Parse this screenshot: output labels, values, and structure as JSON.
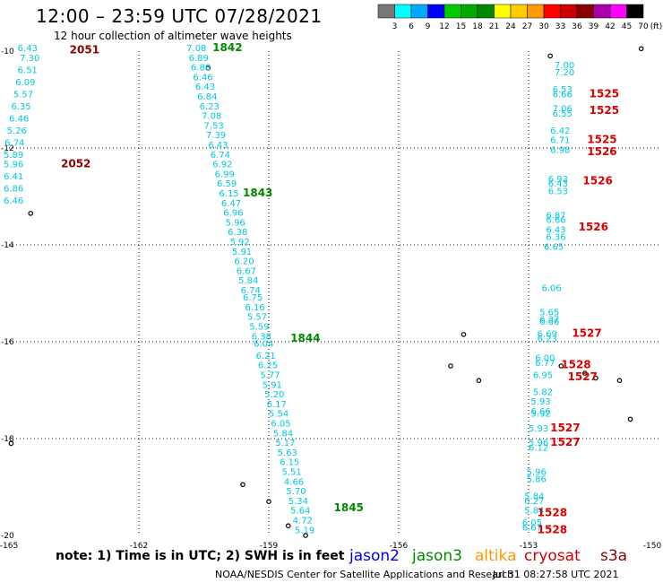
{
  "header": {
    "title": "12:00 – 23:59 UTC 07/28/2021",
    "subtitle": "12 hour collection of altimeter wave heights"
  },
  "colorbar": {
    "labels": [
      "3",
      "6",
      "9",
      "12",
      "15",
      "18",
      "21",
      "24",
      "27",
      "30",
      "33",
      "36",
      "39",
      "42",
      "45",
      "70",
      "(ft)"
    ],
    "colors": [
      "#777777",
      "#00ffff",
      "#00aaff",
      "#0000ff",
      "#00cc00",
      "#00aa00",
      "#008800",
      "#ffff00",
      "#ffcc00",
      "#ff9900",
      "#ff0000",
      "#cc0000",
      "#880000",
      "#aa00aa",
      "#ff00ff",
      "#000000"
    ]
  },
  "axes": {
    "x_ticks": [
      "-165",
      "-162",
      "-159",
      "-156",
      "-153",
      "-150"
    ],
    "y_ticks": [
      "-10",
      "-12",
      "-14",
      "-16",
      "-18",
      "-20"
    ]
  },
  "tracks": [
    {
      "label": "2051",
      "color": "#8b0000",
      "lat": -10.05,
      "lon": -163.6
    },
    {
      "label": "2052",
      "color": "#8b0000",
      "lat": -12.4,
      "lon": -163.8
    },
    {
      "label": "1842",
      "color": "#008800",
      "lat": -10.0,
      "lon": -160.3
    },
    {
      "label": "1843",
      "color": "#008800",
      "lat": -13.0,
      "lon": -159.6
    },
    {
      "label": "1844",
      "color": "#008800",
      "lat": -16.0,
      "lon": -158.5
    },
    {
      "label": "1845",
      "color": "#008800",
      "lat": -19.5,
      "lon": -157.5
    },
    {
      "label": "1525",
      "color": "#dd0000",
      "lat": -10.95,
      "lon": -151.6
    },
    {
      "label": "1525",
      "color": "#dd0000",
      "lat": -11.3,
      "lon": -151.6
    },
    {
      "label": "1525",
      "color": "#dd0000",
      "lat": -11.9,
      "lon": -151.65
    },
    {
      "label": "1526",
      "color": "#dd0000",
      "lat": -12.15,
      "lon": -151.65
    },
    {
      "label": "1526",
      "color": "#dd0000",
      "lat": -12.75,
      "lon": -151.75
    },
    {
      "label": "1526",
      "color": "#dd0000",
      "lat": -13.7,
      "lon": -151.85
    },
    {
      "label": "1527",
      "color": "#dd0000",
      "lat": -15.9,
      "lon": -152.0
    },
    {
      "label": "1528",
      "color": "#dd0000",
      "lat": -16.55,
      "lon": -152.25
    },
    {
      "label": "1527",
      "color": "#dd0000",
      "lat": -16.8,
      "lon": -152.1
    },
    {
      "label": "1527",
      "color": "#dd0000",
      "lat": -17.85,
      "lon": -152.5
    },
    {
      "label": "1527",
      "color": "#dd0000",
      "lat": -18.15,
      "lon": -152.5
    },
    {
      "label": "1528",
      "color": "#dd0000",
      "lat": -19.6,
      "lon": -152.8
    },
    {
      "label": "1528",
      "color": "#dd0000",
      "lat": -19.95,
      "lon": -152.8
    }
  ],
  "wave_values": [
    {
      "v": "6.43",
      "lat": -10.0,
      "lon": -164.8
    },
    {
      "v": "7.30",
      "lat": -10.2,
      "lon": -164.75
    },
    {
      "v": "6.51",
      "lat": -10.45,
      "lon": -164.8
    },
    {
      "v": "6.09",
      "lat": -10.7,
      "lon": -164.85
    },
    {
      "v": "5.57",
      "lat": -10.95,
      "lon": -164.9
    },
    {
      "v": "6.35",
      "lat": -11.2,
      "lon": -164.95
    },
    {
      "v": "6.46",
      "lat": -11.45,
      "lon": -165.0
    },
    {
      "v": "5.26",
      "lat": -11.7,
      "lon": -165.05
    },
    {
      "v": "6.74",
      "lat": -11.95,
      "lon": -165.1
    },
    {
      "v": "5.89",
      "lat": -12.2,
      "lon": -165.15
    },
    {
      "v": "5.96",
      "lat": -12.4,
      "lon": -165.2
    },
    {
      "v": "6.41",
      "lat": -12.65,
      "lon": -165.25
    },
    {
      "v": "6.86",
      "lat": -12.9,
      "lon": -165.3
    },
    {
      "v": "6.46",
      "lat": -13.15,
      "lon": -165.35
    },
    {
      "v": "7.08",
      "lat": -10.0,
      "lon": -160.9
    },
    {
      "v": "6.89",
      "lat": -10.2,
      "lon": -160.85
    },
    {
      "v": "6.88",
      "lat": -10.4,
      "lon": -160.8
    },
    {
      "v": "6.46",
      "lat": -10.6,
      "lon": -160.75
    },
    {
      "v": "6.43",
      "lat": -10.8,
      "lon": -160.7
    },
    {
      "v": "6.84",
      "lat": -11.0,
      "lon": -160.65
    },
    {
      "v": "6.23",
      "lat": -11.2,
      "lon": -160.6
    },
    {
      "v": "7.08",
      "lat": -11.4,
      "lon": -160.55
    },
    {
      "v": "7.53",
      "lat": -11.6,
      "lon": -160.5
    },
    {
      "v": "7.39",
      "lat": -11.8,
      "lon": -160.45
    },
    {
      "v": "6.43",
      "lat": -12.0,
      "lon": -160.4
    },
    {
      "v": "6.74",
      "lat": -12.2,
      "lon": -160.35
    },
    {
      "v": "6.92",
      "lat": -12.4,
      "lon": -160.3
    },
    {
      "v": "6.99",
      "lat": -12.6,
      "lon": -160.25
    },
    {
      "v": "6.59",
      "lat": -12.8,
      "lon": -160.2
    },
    {
      "v": "6.15",
      "lat": -13.0,
      "lon": -160.15
    },
    {
      "v": "6.47",
      "lat": -13.2,
      "lon": -160.1
    },
    {
      "v": "6.96",
      "lat": -13.4,
      "lon": -160.05
    },
    {
      "v": "5.96",
      "lat": -13.6,
      "lon": -160.0
    },
    {
      "v": "6.38",
      "lat": -13.8,
      "lon": -159.95
    },
    {
      "v": "5.92",
      "lat": -14.0,
      "lon": -159.9
    },
    {
      "v": "5.91",
      "lat": -14.2,
      "lon": -159.85
    },
    {
      "v": "6.20",
      "lat": -14.4,
      "lon": -159.8
    },
    {
      "v": "6.67",
      "lat": -14.6,
      "lon": -159.75
    },
    {
      "v": "5.84",
      "lat": -14.8,
      "lon": -159.7
    },
    {
      "v": "6.74",
      "lat": -15.0,
      "lon": -159.65
    },
    {
      "v": "6.75",
      "lat": -15.15,
      "lon": -159.6
    },
    {
      "v": "6.16",
      "lat": -15.35,
      "lon": -159.55
    },
    {
      "v": "5.57",
      "lat": -15.55,
      "lon": -159.5
    },
    {
      "v": "5.59",
      "lat": -15.75,
      "lon": -159.45
    },
    {
      "v": "6.38",
      "lat": -15.95,
      "lon": -159.4
    },
    {
      "v": "6.04",
      "lat": -16.1,
      "lon": -159.35
    },
    {
      "v": "6.21",
      "lat": -16.35,
      "lon": -159.3
    },
    {
      "v": "6.25",
      "lat": -16.55,
      "lon": -159.25
    },
    {
      "v": "5.77",
      "lat": -16.75,
      "lon": -159.2
    },
    {
      "v": "5.91",
      "lat": -16.95,
      "lon": -159.15
    },
    {
      "v": "5.20",
      "lat": -17.15,
      "lon": -159.1
    },
    {
      "v": "6.17",
      "lat": -17.35,
      "lon": -159.05
    },
    {
      "v": "5.54",
      "lat": -17.55,
      "lon": -159.0
    },
    {
      "v": "6.05",
      "lat": -17.75,
      "lon": -158.95
    },
    {
      "v": "5.84",
      "lat": -17.95,
      "lon": -158.9
    },
    {
      "v": "5.17",
      "lat": -18.15,
      "lon": -158.85
    },
    {
      "v": "5.63",
      "lat": -18.35,
      "lon": -158.8
    },
    {
      "v": "6.15",
      "lat": -18.55,
      "lon": -158.75
    },
    {
      "v": "5.51",
      "lat": -18.75,
      "lon": -158.7
    },
    {
      "v": "4.66",
      "lat": -18.95,
      "lon": -158.65
    },
    {
      "v": "5.70",
      "lat": -19.15,
      "lon": -158.6
    },
    {
      "v": "5.34",
      "lat": -19.35,
      "lon": -158.55
    },
    {
      "v": "5.64",
      "lat": -19.55,
      "lon": -158.5
    },
    {
      "v": "4.72",
      "lat": -19.75,
      "lon": -158.45
    },
    {
      "v": "5.19",
      "lat": -19.95,
      "lon": -158.4
    },
    {
      "v": "7.00",
      "lat": -10.35,
      "lon": -152.4
    },
    {
      "v": "7.20",
      "lat": -10.5,
      "lon": -152.4
    },
    {
      "v": "6.53",
      "lat": -10.85,
      "lon": -152.45
    },
    {
      "v": "6.66",
      "lat": -10.95,
      "lon": -152.45
    },
    {
      "v": "7.06",
      "lat": -11.25,
      "lon": -152.45
    },
    {
      "v": "6.55",
      "lat": -11.35,
      "lon": -152.45
    },
    {
      "v": "6.42",
      "lat": -11.7,
      "lon": -152.5
    },
    {
      "v": "6.71",
      "lat": -11.9,
      "lon": -152.5
    },
    {
      "v": "6.98",
      "lat": -12.1,
      "lon": -152.5
    },
    {
      "v": "6.93",
      "lat": -12.7,
      "lon": -152.55
    },
    {
      "v": "6.43",
      "lat": -12.8,
      "lon": -152.55
    },
    {
      "v": "6.53",
      "lat": -12.95,
      "lon": -152.55
    },
    {
      "v": "6.87",
      "lat": -13.45,
      "lon": -152.6
    },
    {
      "v": "6.66",
      "lat": -13.55,
      "lon": -152.6
    },
    {
      "v": "6.43",
      "lat": -13.75,
      "lon": -152.6
    },
    {
      "v": "6.36",
      "lat": -13.9,
      "lon": -152.6
    },
    {
      "v": "6.65",
      "lat": -14.1,
      "lon": -152.65
    },
    {
      "v": "6.06",
      "lat": -14.95,
      "lon": -152.7
    },
    {
      "v": "5.65",
      "lat": -15.45,
      "lon": -152.75
    },
    {
      "v": "6.37",
      "lat": -15.6,
      "lon": -152.75
    },
    {
      "v": "6.66",
      "lat": -15.65,
      "lon": -152.75
    },
    {
      "v": "6.69",
      "lat": -15.9,
      "lon": -152.8
    },
    {
      "v": "6.23",
      "lat": -16.0,
      "lon": -152.8
    },
    {
      "v": "6.00",
      "lat": -16.4,
      "lon": -152.85
    },
    {
      "v": "6.77",
      "lat": -16.5,
      "lon": -152.85
    },
    {
      "v": "6.95",
      "lat": -16.75,
      "lon": -152.9
    },
    {
      "v": "5.82",
      "lat": -17.1,
      "lon": -152.9
    },
    {
      "v": "5.93",
      "lat": -17.3,
      "lon": -152.95
    },
    {
      "v": "6.66",
      "lat": -17.5,
      "lon": -152.95
    },
    {
      "v": "5.92",
      "lat": -17.55,
      "lon": -152.95
    },
    {
      "v": "5.93",
      "lat": -17.85,
      "lon": -153.0
    },
    {
      "v": "5.96",
      "lat": -18.15,
      "lon": -153.0
    },
    {
      "v": "6.12",
      "lat": -18.25,
      "lon": -153.0
    },
    {
      "v": "5.96",
      "lat": -18.75,
      "lon": -153.05
    },
    {
      "v": "5.86",
      "lat": -18.9,
      "lon": -153.05
    },
    {
      "v": "5.84",
      "lat": -19.25,
      "lon": -153.1
    },
    {
      "v": "6.27",
      "lat": -19.35,
      "lon": -153.1
    },
    {
      "v": "5.84",
      "lat": -19.55,
      "lon": -153.1
    },
    {
      "v": "6.05",
      "lat": -19.8,
      "lon": -153.15
    },
    {
      "v": "6.67",
      "lat": -19.9,
      "lon": -153.15
    }
  ],
  "islands": [
    {
      "lat": -13.35,
      "lon": -164.5
    },
    {
      "lat": -10.35,
      "lon": -160.4
    },
    {
      "lat": -18.1,
      "lon": -164.95
    },
    {
      "lat": -18.95,
      "lon": -159.6
    },
    {
      "lat": -19.3,
      "lon": -159.0
    },
    {
      "lat": -19.8,
      "lon": -158.55
    },
    {
      "lat": -20.0,
      "lon": -158.15
    },
    {
      "lat": -10.1,
      "lon": -152.5
    },
    {
      "lat": -15.85,
      "lon": -154.5
    },
    {
      "lat": -16.5,
      "lon": -154.8
    },
    {
      "lat": -16.8,
      "lon": -154.15
    },
    {
      "lat": -16.5,
      "lon": -152.25
    },
    {
      "lat": -16.65,
      "lon": -151.7
    },
    {
      "lat": -16.75,
      "lon": -151.45
    },
    {
      "lat": -16.8,
      "lon": -150.9
    },
    {
      "lat": -17.6,
      "lon": -150.65
    },
    {
      "lat": -9.95,
      "lon": -150.4
    }
  ],
  "legend": {
    "note": "note:  1) Time is in UTC;  2) SWH is in feet",
    "sats": [
      {
        "name": "jason2",
        "color": "#0000ee"
      },
      {
        "name": "jason3",
        "color": "#008800"
      },
      {
        "name": "altika",
        "color": "#ff9900"
      },
      {
        "name": "cryosat",
        "color": "#cc0000"
      },
      {
        "name": "s3a",
        "color": "#880000"
      }
    ]
  },
  "footer": {
    "credit": "NOAA/NESDIS Center for Satellite Applications and Research",
    "timestamp": "Jul 31 08:27:58 UTC 2021"
  }
}
